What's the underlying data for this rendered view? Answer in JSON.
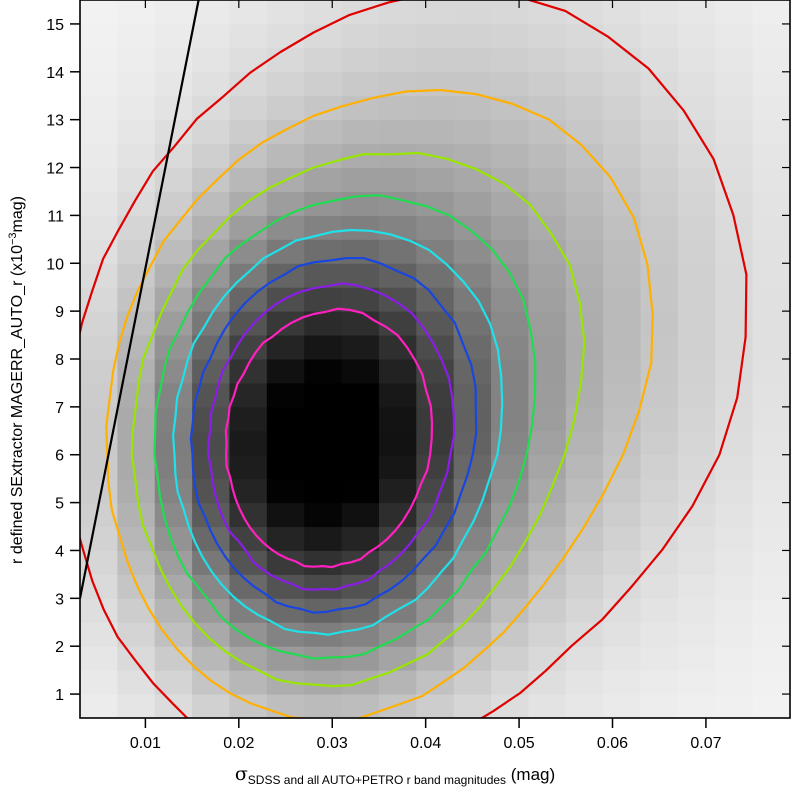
{
  "chart_data": {
    "type": "heatmap",
    "title": "",
    "xlabel": {
      "symbol": "σ",
      "subscript": "SDSS and all AUTO+PETRO r band magnitudes",
      "unit": " (mag)"
    },
    "ylabel": {
      "main": "r defined SExtractor MAGERR_AUTO_r (x10",
      "superscript": "−3",
      "unit": "mag)"
    },
    "xlim": [
      0.003,
      0.079
    ],
    "ylim": [
      0.5,
      15.5
    ],
    "x_ticks": [
      {
        "value": 0.01,
        "label": "0.01"
      },
      {
        "value": 0.02,
        "label": "0.02"
      },
      {
        "value": 0.03,
        "label": "0.03"
      },
      {
        "value": 0.04,
        "label": "0.04"
      },
      {
        "value": 0.05,
        "label": "0.05"
      },
      {
        "value": 0.06,
        "label": "0.06"
      },
      {
        "value": 0.07,
        "label": "0.07"
      }
    ],
    "y_ticks": [
      {
        "value": 1,
        "label": "1"
      },
      {
        "value": 2,
        "label": "2"
      },
      {
        "value": 3,
        "label": "3"
      },
      {
        "value": 4,
        "label": "4"
      },
      {
        "value": 5,
        "label": "5"
      },
      {
        "value": 6,
        "label": "6"
      },
      {
        "value": 7,
        "label": "7"
      },
      {
        "value": 8,
        "label": "8"
      },
      {
        "value": 9,
        "label": "9"
      },
      {
        "value": 10,
        "label": "10"
      },
      {
        "value": 11,
        "label": "11"
      },
      {
        "value": 12,
        "label": "12"
      },
      {
        "value": 13,
        "label": "13"
      },
      {
        "value": 14,
        "label": "14"
      },
      {
        "value": 15,
        "label": "15"
      }
    ],
    "heatmap": {
      "colormap": "greyscale, darker = higher density",
      "x_center": 0.028,
      "y_center": 6.0,
      "x_spread": 0.012,
      "y_spread": 3.0,
      "x_bin": 0.004,
      "y_bin": 0.5
    },
    "contour_levels": [
      {
        "color": "#e00000",
        "level": 1
      },
      {
        "color": "#ffb000",
        "level": 2
      },
      {
        "color": "#98e600",
        "level": 3
      },
      {
        "color": "#20dc50",
        "level": 4
      },
      {
        "color": "#20e0e8",
        "level": 5
      },
      {
        "color": "#1a46e0",
        "level": 6
      },
      {
        "color": "#8a1ee6",
        "level": 7
      },
      {
        "color": "#ff20c0",
        "level": 8
      }
    ],
    "reference_line": {
      "points": [
        [
          0.003,
          3.0
        ],
        [
          0.0157,
          15.5
        ]
      ],
      "color": "#000000"
    }
  }
}
